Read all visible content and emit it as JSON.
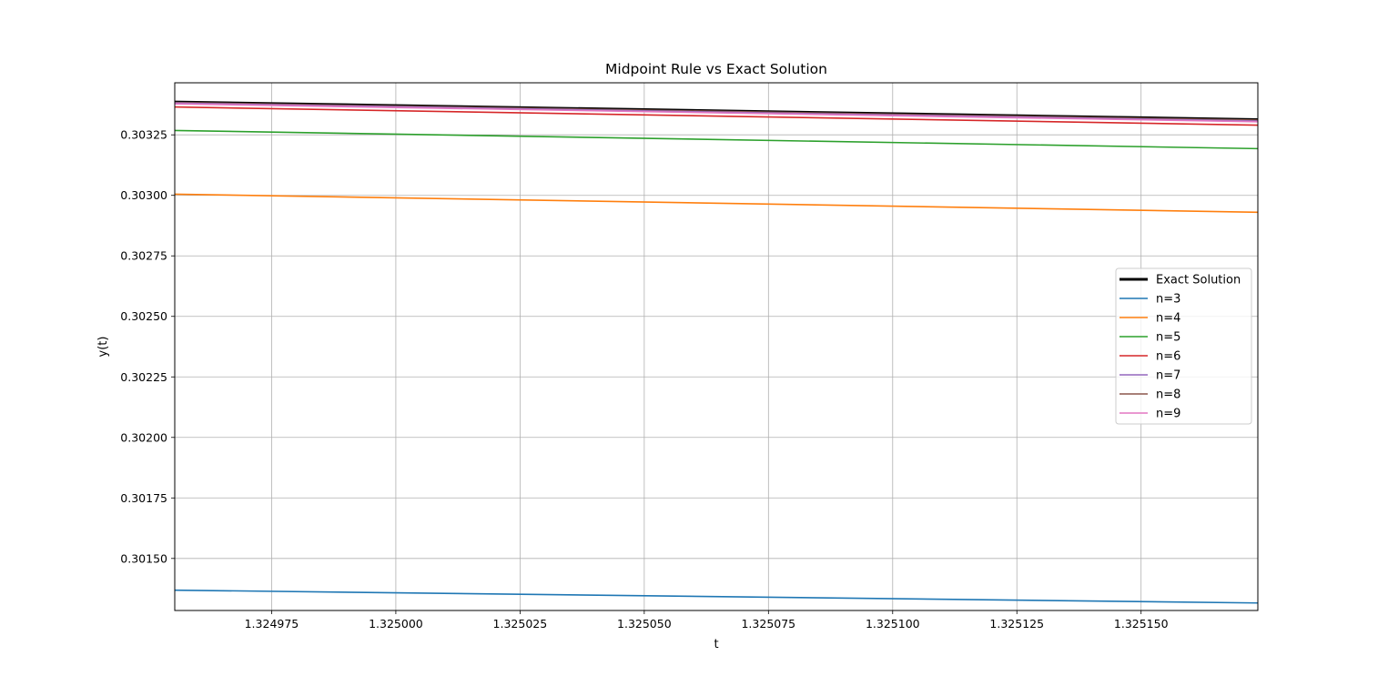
{
  "chart_data": {
    "type": "line",
    "title": "Midpoint Rule vs Exact Solution",
    "xlabel": "t",
    "ylabel": "y(t)",
    "xlim": [
      1.3249555,
      1.3251735
    ],
    "ylim": [
      0.301285,
      0.303465
    ],
    "grid": true,
    "legend_position": "center-right",
    "xticks": [
      {
        "value": 1.324975,
        "label": "1.324975"
      },
      {
        "value": 1.325,
        "label": "1.325000"
      },
      {
        "value": 1.325025,
        "label": "1.325025"
      },
      {
        "value": 1.32505,
        "label": "1.325050"
      },
      {
        "value": 1.325075,
        "label": "1.325075"
      },
      {
        "value": 1.3251,
        "label": "1.325100"
      },
      {
        "value": 1.325125,
        "label": "1.325125"
      },
      {
        "value": 1.32515,
        "label": "1.325150"
      }
    ],
    "yticks": [
      {
        "value": 0.3015,
        "label": "0.30150"
      },
      {
        "value": 0.30175,
        "label": "0.30175"
      },
      {
        "value": 0.302,
        "label": "0.30200"
      },
      {
        "value": 0.30225,
        "label": "0.30225"
      },
      {
        "value": 0.3025,
        "label": "0.30250"
      },
      {
        "value": 0.30275,
        "label": "0.30275"
      },
      {
        "value": 0.303,
        "label": "0.30300"
      },
      {
        "value": 0.30325,
        "label": "0.30325"
      }
    ],
    "series": [
      {
        "name": "Exact Solution",
        "color": "#000000",
        "width": 3,
        "x": [
          1.3249555,
          1.3251735
        ],
        "y": [
          0.303389,
          0.303316
        ]
      },
      {
        "name": "n=3",
        "color": "#1f77b4",
        "width": 1.6,
        "x": [
          1.3249555,
          1.3251735
        ],
        "y": [
          0.301369,
          0.301316
        ]
      },
      {
        "name": "n=4",
        "color": "#ff7f0e",
        "width": 1.6,
        "x": [
          1.3249555,
          1.3251735
        ],
        "y": [
          0.303005,
          0.30293
        ]
      },
      {
        "name": "n=5",
        "color": "#2ca02c",
        "width": 1.6,
        "x": [
          1.3249555,
          1.3251735
        ],
        "y": [
          0.303268,
          0.303193
        ]
      },
      {
        "name": "n=6",
        "color": "#d62728",
        "width": 1.6,
        "x": [
          1.3249555,
          1.3251735
        ],
        "y": [
          0.303365,
          0.30329
        ]
      },
      {
        "name": "n=7",
        "color": "#9467bd",
        "width": 1.6,
        "x": [
          1.3249555,
          1.3251735
        ],
        "y": [
          0.303383,
          0.303309
        ]
      },
      {
        "name": "n=8",
        "color": "#8c564b",
        "width": 1.6,
        "x": [
          1.3249555,
          1.3251735
        ],
        "y": [
          0.303387,
          0.303313
        ]
      },
      {
        "name": "n=9",
        "color": "#e377c2",
        "width": 1.6,
        "x": [
          1.3249555,
          1.3251735
        ],
        "y": [
          0.303378,
          0.303304
        ]
      }
    ]
  }
}
